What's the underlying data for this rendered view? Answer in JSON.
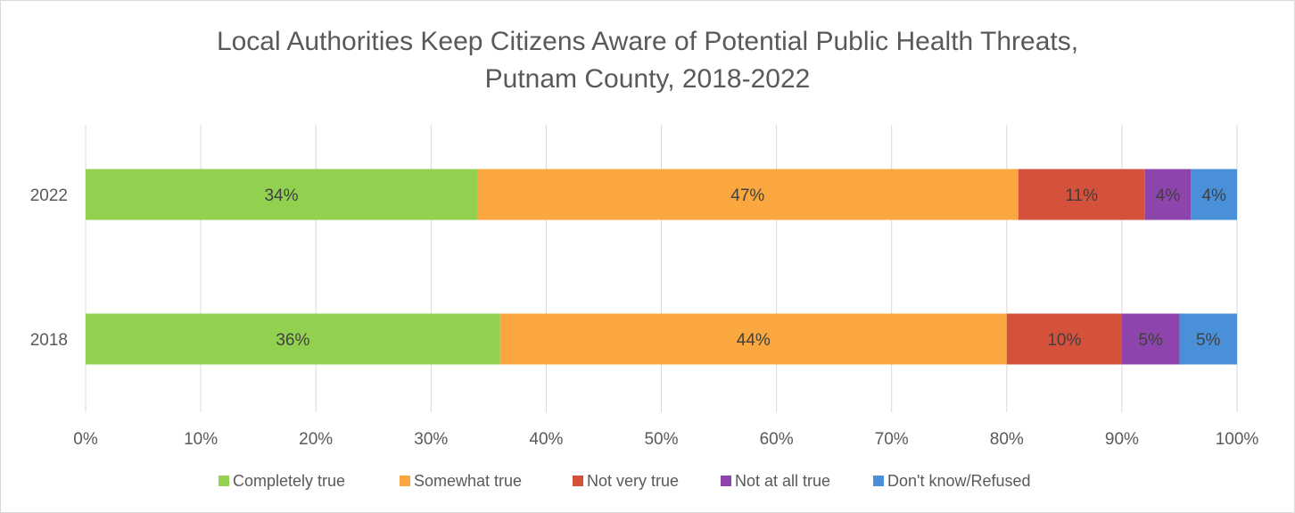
{
  "chart_data": {
    "type": "bar",
    "orientation": "horizontal",
    "stacked": true,
    "title": "Local Authorities Keep Citizens Aware of Potential Public Health Threats, Putnam County, 2018-2022",
    "title_lines": [
      "Local Authorities Keep Citizens Aware of Potential Public Health Threats,",
      "Putnam County, 2018-2022"
    ],
    "categories": [
      "2022",
      "2018"
    ],
    "series": [
      {
        "name": "Completely true",
        "color": "#92d050",
        "values": [
          34,
          36
        ],
        "labels": [
          "34%",
          "36%"
        ]
      },
      {
        "name": "Somewhat true",
        "color": "#f9a73e",
        "values": [
          47,
          44
        ],
        "labels": [
          "47%",
          "44%"
        ]
      },
      {
        "name": "Not very true",
        "color": "#d4513c",
        "values": [
          11,
          10
        ],
        "labels": [
          "11%",
          "10%"
        ]
      },
      {
        "name": "Not at all true",
        "color": "#8e44ad",
        "values": [
          4,
          5
        ],
        "labels": [
          "4%",
          "5%"
        ]
      },
      {
        "name": "Don't know/Refused",
        "color": "#4a90d9",
        "values": [
          4,
          5
        ],
        "labels": [
          "4%",
          "5%"
        ]
      }
    ],
    "xlim": [
      0,
      100
    ],
    "xticks": [
      "0%",
      "10%",
      "20%",
      "30%",
      "40%",
      "50%",
      "60%",
      "70%",
      "80%",
      "90%",
      "100%"
    ],
    "grid": true,
    "legend_position": "bottom"
  }
}
